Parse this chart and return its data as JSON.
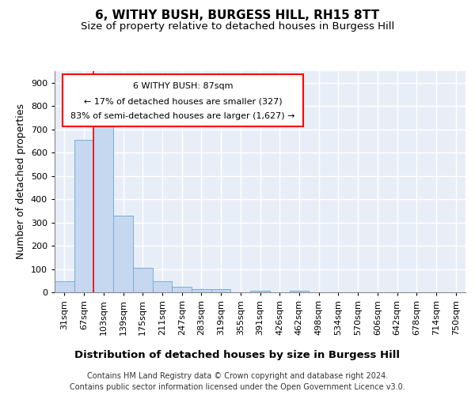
{
  "title": "6, WITHY BUSH, BURGESS HILL, RH15 8TT",
  "subtitle": "Size of property relative to detached houses in Burgess Hill",
  "xlabel": "Distribution of detached houses by size in Burgess Hill",
  "ylabel": "Number of detached properties",
  "footer_line1": "Contains HM Land Registry data © Crown copyright and database right 2024.",
  "footer_line2": "Contains public sector information licensed under the Open Government Licence v3.0.",
  "bar_labels": [
    "31sqm",
    "67sqm",
    "103sqm",
    "139sqm",
    "175sqm",
    "211sqm",
    "247sqm",
    "283sqm",
    "319sqm",
    "355sqm",
    "391sqm",
    "426sqm",
    "462sqm",
    "498sqm",
    "534sqm",
    "570sqm",
    "606sqm",
    "642sqm",
    "678sqm",
    "714sqm",
    "750sqm"
  ],
  "bar_values": [
    48,
    655,
    738,
    328,
    105,
    48,
    23,
    14,
    12,
    0,
    8,
    0,
    8,
    0,
    0,
    0,
    0,
    0,
    0,
    0,
    0
  ],
  "bar_color": "#c5d8f0",
  "bar_edge_color": "#7aadd4",
  "annotation_text_line1": "6 WITHY BUSH: 87sqm",
  "annotation_text_line2": "← 17% of detached houses are smaller (327)",
  "annotation_text_line3": "83% of semi-detached houses are larger (1,627) →",
  "ylim": [
    0,
    950
  ],
  "yticks": [
    0,
    100,
    200,
    300,
    400,
    500,
    600,
    700,
    800,
    900
  ],
  "background_color": "#e8eef8",
  "grid_color": "#ffffff",
  "title_fontsize": 11,
  "subtitle_fontsize": 9.5,
  "ylabel_fontsize": 9,
  "xlabel_fontsize": 9.5,
  "tick_fontsize": 8,
  "annotation_fontsize": 8,
  "footer_fontsize": 7
}
